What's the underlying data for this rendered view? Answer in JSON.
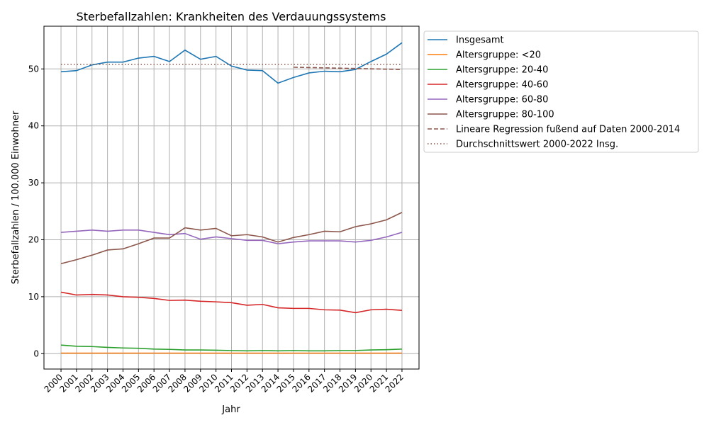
{
  "chart_data": {
    "type": "line",
    "title": "Sterbefallzahlen: Krankheiten des Verdauungssystems",
    "xlabel": "Jahr",
    "ylabel": "Sterbefallzahlen / 100.000 Einwohner",
    "x": [
      2000,
      2001,
      2002,
      2003,
      2004,
      2005,
      2006,
      2007,
      2008,
      2009,
      2010,
      2011,
      2012,
      2013,
      2014,
      2015,
      2016,
      2017,
      2018,
      2019,
      2020,
      2021,
      2022
    ],
    "ylim": [
      -2.7,
      57.5
    ],
    "yticks": [
      0,
      10,
      20,
      30,
      40,
      50
    ],
    "grid": true,
    "legend_position": "outside-top-right",
    "series": [
      {
        "name": "Insgesamt",
        "color": "#1f77b4",
        "style": "solid",
        "values": [
          49.5,
          49.7,
          50.7,
          51.2,
          51.2,
          51.9,
          52.2,
          51.3,
          53.3,
          51.7,
          52.2,
          50.5,
          49.8,
          49.7,
          47.5,
          48.5,
          49.3,
          49.6,
          49.5,
          49.9,
          51.3,
          52.6,
          54.6
        ]
      },
      {
        "name": "Altersgruppe: <20",
        "color": "#ff7f0e",
        "style": "solid",
        "values": [
          0.1,
          0.1,
          0.1,
          0.1,
          0.1,
          0.1,
          0.1,
          0.1,
          0.1,
          0.1,
          0.1,
          0.1,
          0.1,
          0.1,
          0.1,
          0.1,
          0.1,
          0.1,
          0.1,
          0.1,
          0.1,
          0.1,
          0.1
        ]
      },
      {
        "name": "Altersgruppe: 20-40",
        "color": "#2ca02c",
        "style": "solid",
        "values": [
          1.5,
          1.3,
          1.25,
          1.1,
          1.0,
          0.95,
          0.8,
          0.75,
          0.65,
          0.65,
          0.6,
          0.55,
          0.5,
          0.55,
          0.5,
          0.55,
          0.5,
          0.5,
          0.55,
          0.55,
          0.65,
          0.7,
          0.8
        ]
      },
      {
        "name": "Altersgruppe: 40-60",
        "color": "#d62728",
        "style": "solid",
        "values": [
          10.8,
          10.3,
          10.4,
          10.3,
          10.0,
          9.9,
          9.7,
          9.35,
          9.4,
          9.2,
          9.1,
          8.95,
          8.5,
          8.65,
          8.05,
          7.95,
          7.95,
          7.7,
          7.65,
          7.2,
          7.7,
          7.8,
          7.6
        ]
      },
      {
        "name": "Altersgruppe: 60-80",
        "color": "#9467bd",
        "style": "solid",
        "values": [
          21.3,
          21.5,
          21.7,
          21.5,
          21.7,
          21.7,
          21.3,
          20.9,
          21.1,
          20.1,
          20.5,
          20.2,
          19.9,
          19.9,
          19.3,
          19.6,
          19.8,
          19.8,
          19.8,
          19.6,
          19.9,
          20.5,
          21.3
        ]
      },
      {
        "name": "Altersgruppe: 80-100",
        "color": "#8c564b",
        "style": "solid",
        "values": [
          15.8,
          16.5,
          17.3,
          18.2,
          18.4,
          19.3,
          20.3,
          20.3,
          22.1,
          21.7,
          22.0,
          20.7,
          20.9,
          20.5,
          19.6,
          20.4,
          20.9,
          21.5,
          21.4,
          22.3,
          22.8,
          23.5,
          24.8
        ]
      },
      {
        "name": "Lineare Regression fußend auf Daten 2000-2014",
        "color": "#8c564b",
        "style": "dashed",
        "x": [
          2015,
          2022
        ],
        "values": [
          50.3,
          49.9
        ]
      },
      {
        "name": "Durchschnittswert 2000-2022 Insg.",
        "color": "#8c564b",
        "style": "dotted",
        "x": [
          2000,
          2022
        ],
        "values": [
          50.8,
          50.8
        ]
      }
    ]
  }
}
